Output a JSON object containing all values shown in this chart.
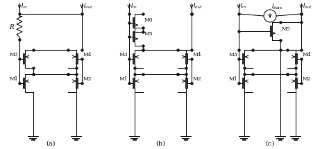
{
  "bg_color": "#ffffff",
  "line_color": "#1a1a1a",
  "text_color": "#111111",
  "label_a": "(a)",
  "label_b": "(b)",
  "label_c": "(c)",
  "figsize": [
    4.74,
    2.15
  ],
  "dpi": 100
}
